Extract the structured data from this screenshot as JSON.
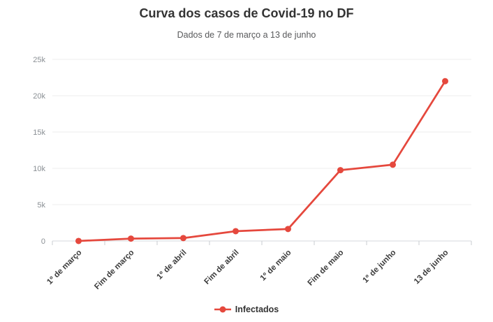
{
  "chart_data": {
    "type": "line",
    "title": "Curva dos casos de Covid-19 no DF",
    "subtitle": "Dados de 7 de março a 13 de junho",
    "categories": [
      "1º de março",
      "Fim de março",
      "1º de abril",
      "Fim de abril",
      "1º de maio",
      "Fim de maio",
      "1º de junho",
      "13 de junho"
    ],
    "series": [
      {
        "name": "Infectados",
        "color": "#e5483d",
        "values": [
          1,
          330,
          400,
          1350,
          1650,
          9750,
          10500,
          22000
        ]
      }
    ],
    "xlabel": "",
    "ylabel": "",
    "ylim": [
      0,
      25000
    ],
    "yticks": [
      0,
      5000,
      10000,
      15000,
      20000,
      25000
    ],
    "ytick_labels": [
      "0",
      "5k",
      "10k",
      "15k",
      "20k",
      "25k"
    ],
    "grid": true,
    "legend_position": "bottom"
  },
  "colors": {
    "series_red": "#e5483d",
    "gridline": "#ececec",
    "axis_line": "#d6d9dc",
    "tick": "#c9cdd1",
    "title_text": "#333333",
    "subtitle_text": "#58595b",
    "y_label_text": "#8a8f94",
    "x_label_text": "#3c3c3c"
  }
}
